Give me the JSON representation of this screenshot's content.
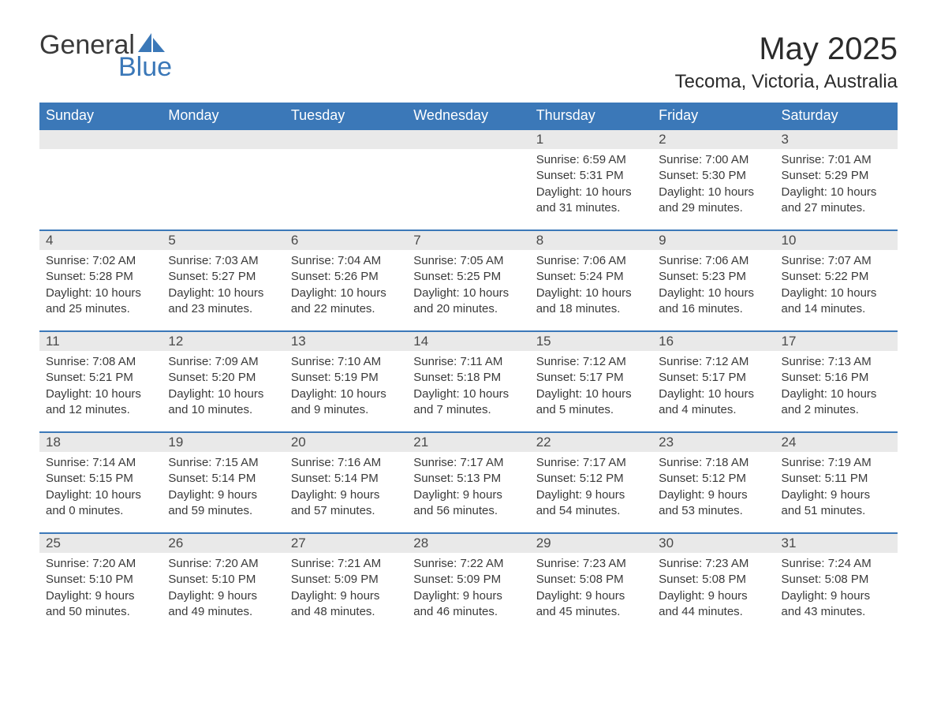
{
  "logo": {
    "text1": "General",
    "text2": "Blue",
    "sail_color": "#3b78b8"
  },
  "header": {
    "title": "May 2025",
    "subtitle": "Tecoma, Victoria, Australia"
  },
  "calendar": {
    "header_bg": "#3b78b8",
    "header_fg": "#ffffff",
    "row_border": "#3b78b8",
    "daynum_bg": "#e9e9e9",
    "text_color": "#3a3a3a",
    "daynames": [
      "Sunday",
      "Monday",
      "Tuesday",
      "Wednesday",
      "Thursday",
      "Friday",
      "Saturday"
    ],
    "weeks": [
      [
        null,
        null,
        null,
        null,
        {
          "n": "1",
          "sunrise": "6:59 AM",
          "sunset": "5:31 PM",
          "daylight": "10 hours and 31 minutes."
        },
        {
          "n": "2",
          "sunrise": "7:00 AM",
          "sunset": "5:30 PM",
          "daylight": "10 hours and 29 minutes."
        },
        {
          "n": "3",
          "sunrise": "7:01 AM",
          "sunset": "5:29 PM",
          "daylight": "10 hours and 27 minutes."
        }
      ],
      [
        {
          "n": "4",
          "sunrise": "7:02 AM",
          "sunset": "5:28 PM",
          "daylight": "10 hours and 25 minutes."
        },
        {
          "n": "5",
          "sunrise": "7:03 AM",
          "sunset": "5:27 PM",
          "daylight": "10 hours and 23 minutes."
        },
        {
          "n": "6",
          "sunrise": "7:04 AM",
          "sunset": "5:26 PM",
          "daylight": "10 hours and 22 minutes."
        },
        {
          "n": "7",
          "sunrise": "7:05 AM",
          "sunset": "5:25 PM",
          "daylight": "10 hours and 20 minutes."
        },
        {
          "n": "8",
          "sunrise": "7:06 AM",
          "sunset": "5:24 PM",
          "daylight": "10 hours and 18 minutes."
        },
        {
          "n": "9",
          "sunrise": "7:06 AM",
          "sunset": "5:23 PM",
          "daylight": "10 hours and 16 minutes."
        },
        {
          "n": "10",
          "sunrise": "7:07 AM",
          "sunset": "5:22 PM",
          "daylight": "10 hours and 14 minutes."
        }
      ],
      [
        {
          "n": "11",
          "sunrise": "7:08 AM",
          "sunset": "5:21 PM",
          "daylight": "10 hours and 12 minutes."
        },
        {
          "n": "12",
          "sunrise": "7:09 AM",
          "sunset": "5:20 PM",
          "daylight": "10 hours and 10 minutes."
        },
        {
          "n": "13",
          "sunrise": "7:10 AM",
          "sunset": "5:19 PM",
          "daylight": "10 hours and 9 minutes."
        },
        {
          "n": "14",
          "sunrise": "7:11 AM",
          "sunset": "5:18 PM",
          "daylight": "10 hours and 7 minutes."
        },
        {
          "n": "15",
          "sunrise": "7:12 AM",
          "sunset": "5:17 PM",
          "daylight": "10 hours and 5 minutes."
        },
        {
          "n": "16",
          "sunrise": "7:12 AM",
          "sunset": "5:17 PM",
          "daylight": "10 hours and 4 minutes."
        },
        {
          "n": "17",
          "sunrise": "7:13 AM",
          "sunset": "5:16 PM",
          "daylight": "10 hours and 2 minutes."
        }
      ],
      [
        {
          "n": "18",
          "sunrise": "7:14 AM",
          "sunset": "5:15 PM",
          "daylight": "10 hours and 0 minutes."
        },
        {
          "n": "19",
          "sunrise": "7:15 AM",
          "sunset": "5:14 PM",
          "daylight": "9 hours and 59 minutes."
        },
        {
          "n": "20",
          "sunrise": "7:16 AM",
          "sunset": "5:14 PM",
          "daylight": "9 hours and 57 minutes."
        },
        {
          "n": "21",
          "sunrise": "7:17 AM",
          "sunset": "5:13 PM",
          "daylight": "9 hours and 56 minutes."
        },
        {
          "n": "22",
          "sunrise": "7:17 AM",
          "sunset": "5:12 PM",
          "daylight": "9 hours and 54 minutes."
        },
        {
          "n": "23",
          "sunrise": "7:18 AM",
          "sunset": "5:12 PM",
          "daylight": "9 hours and 53 minutes."
        },
        {
          "n": "24",
          "sunrise": "7:19 AM",
          "sunset": "5:11 PM",
          "daylight": "9 hours and 51 minutes."
        }
      ],
      [
        {
          "n": "25",
          "sunrise": "7:20 AM",
          "sunset": "5:10 PM",
          "daylight": "9 hours and 50 minutes."
        },
        {
          "n": "26",
          "sunrise": "7:20 AM",
          "sunset": "5:10 PM",
          "daylight": "9 hours and 49 minutes."
        },
        {
          "n": "27",
          "sunrise": "7:21 AM",
          "sunset": "5:09 PM",
          "daylight": "9 hours and 48 minutes."
        },
        {
          "n": "28",
          "sunrise": "7:22 AM",
          "sunset": "5:09 PM",
          "daylight": "9 hours and 46 minutes."
        },
        {
          "n": "29",
          "sunrise": "7:23 AM",
          "sunset": "5:08 PM",
          "daylight": "9 hours and 45 minutes."
        },
        {
          "n": "30",
          "sunrise": "7:23 AM",
          "sunset": "5:08 PM",
          "daylight": "9 hours and 44 minutes."
        },
        {
          "n": "31",
          "sunrise": "7:24 AM",
          "sunset": "5:08 PM",
          "daylight": "9 hours and 43 minutes."
        }
      ]
    ],
    "labels": {
      "sunrise": "Sunrise:",
      "sunset": "Sunset:",
      "daylight": "Daylight:"
    }
  }
}
